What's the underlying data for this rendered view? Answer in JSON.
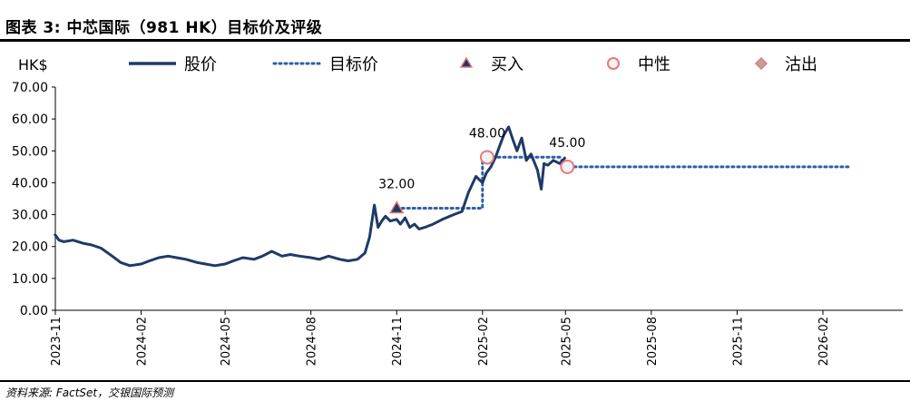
{
  "header": {
    "title": "图表 3: 中芯国际（981 HK）目标价及评级"
  },
  "footer": {
    "source": "资料来源: FactSet，交银国际预测"
  },
  "colors": {
    "price": "#1f3a68",
    "target": "#2e5fa8",
    "buy_fill": "#1f3a68",
    "marker_edge": "#e57a7a",
    "neutral_fill": "#f2f2f2",
    "sell_fill": "#c0a0a0",
    "axis": "#000000"
  },
  "chart_data": {
    "type": "line",
    "ylabel": "HK$",
    "ylim": [
      0,
      70
    ],
    "yticks": [
      "0.00",
      "10.00",
      "20.00",
      "30.00",
      "40.00",
      "50.00",
      "60.00",
      "70.00"
    ],
    "xlim": [
      "2023-11-01",
      "2026-02-01"
    ],
    "xticks": [
      "2023-11",
      "2024-02",
      "2024-05",
      "2024-08",
      "2024-11",
      "2025-02",
      "2025-05",
      "2025-08",
      "2025-11",
      "2026-02"
    ],
    "grid": false,
    "legend": {
      "placement": "top",
      "items": [
        {
          "label": "股价",
          "kind": "line"
        },
        {
          "label": "目标价",
          "kind": "dotted"
        },
        {
          "label": "买入",
          "kind": "triangle"
        },
        {
          "label": "中性",
          "kind": "circle"
        },
        {
          "label": "沽出",
          "kind": "diamond"
        }
      ]
    },
    "series": [
      {
        "name": "股价",
        "x": [
          "2023-10-31",
          "2023-11-05",
          "2023-11-10",
          "2023-11-20",
          "2023-12-01",
          "2023-12-10",
          "2023-12-20",
          "2024-01-01",
          "2024-01-10",
          "2024-01-20",
          "2024-02-01",
          "2024-02-10",
          "2024-02-20",
          "2024-03-01",
          "2024-03-10",
          "2024-03-20",
          "2024-04-01",
          "2024-04-10",
          "2024-04-20",
          "2024-05-01",
          "2024-05-10",
          "2024-05-20",
          "2024-06-01",
          "2024-06-10",
          "2024-06-20",
          "2024-07-01",
          "2024-07-10",
          "2024-07-20",
          "2024-08-01",
          "2024-08-10",
          "2024-08-20",
          "2024-09-01",
          "2024-09-10",
          "2024-09-20",
          "2024-09-28",
          "2024-10-03",
          "2024-10-08",
          "2024-10-12",
          "2024-10-16",
          "2024-10-20",
          "2024-10-25",
          "2024-11-01",
          "2024-11-05",
          "2024-11-10",
          "2024-11-15",
          "2024-11-20",
          "2024-11-25",
          "2024-12-01",
          "2024-12-10",
          "2024-12-20",
          "2025-01-01",
          "2025-01-10",
          "2025-01-17",
          "2025-01-25",
          "2025-02-01",
          "2025-02-05",
          "2025-02-10",
          "2025-02-15",
          "2025-02-20",
          "2025-02-24",
          "2025-03-01",
          "2025-03-05",
          "2025-03-10",
          "2025-03-15",
          "2025-03-20",
          "2025-03-25",
          "2025-04-01",
          "2025-04-05",
          "2025-04-08",
          "2025-04-12",
          "2025-04-18",
          "2025-04-25",
          "2025-05-01"
        ],
        "values": [
          24,
          22,
          21.5,
          22,
          21,
          20.5,
          19.5,
          17,
          15,
          14,
          14.5,
          15.5,
          16.5,
          17,
          16.5,
          16,
          15,
          14.5,
          14,
          14.5,
          15.5,
          16.5,
          16,
          17,
          18.5,
          17,
          17.5,
          17,
          16.5,
          16,
          17,
          16,
          15.5,
          16,
          18,
          23,
          33,
          26,
          28,
          29.5,
          28,
          28.5,
          27,
          29,
          26,
          27,
          25.5,
          26,
          27,
          28.5,
          30,
          31,
          37,
          42,
          40,
          43,
          45,
          48,
          52,
          55,
          57.5,
          54,
          50,
          54,
          47,
          49,
          44,
          38,
          46,
          45.5,
          47,
          46,
          48
        ]
      },
      {
        "name": "目标价",
        "x": [
          "2024-11-01",
          "2025-02-01",
          "2025-02-01",
          "2025-02-10",
          "2025-04-25",
          "2025-05-01",
          "2026-02-28"
        ],
        "values": [
          32,
          32,
          48,
          48,
          48,
          45,
          45
        ]
      }
    ],
    "annotations": [
      {
        "type": "buy",
        "x": "2024-11-01",
        "y": 32,
        "label": "32.00"
      },
      {
        "type": "neutral",
        "x": "2025-02-06",
        "y": 48,
        "label": "48.00"
      },
      {
        "type": "neutral",
        "x": "2025-05-03",
        "y": 45,
        "label": "45.00"
      }
    ]
  }
}
